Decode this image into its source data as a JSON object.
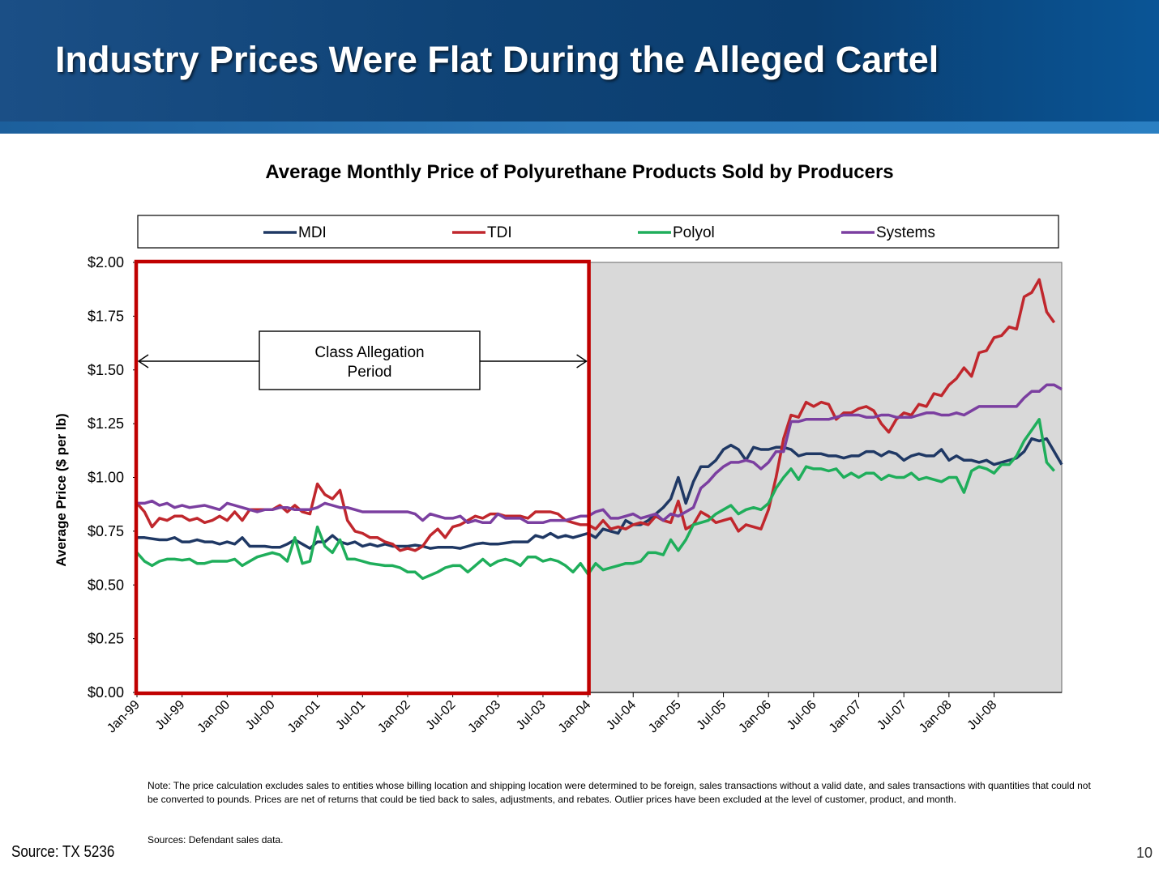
{
  "slide": {
    "title": "Industry Prices Were Flat During the Alleged Cartel",
    "note": "Note: The price calculation excludes sales to entities whose billing location and shipping location were determined to be foreign, sales transactions without a valid date, and sales transactions with quantities that could not be converted to pounds. Prices are net of returns that could be tied back to sales, adjustments, and rebates.  Outlier prices have been excluded at the level of customer, product, and month.",
    "sources": "Sources: Defendant sales data.",
    "footer_source": "Source: TX 5236",
    "page_number": "10"
  },
  "colors": {
    "header_bg": "#0f4376",
    "MDI": "#1f3864",
    "TDI": "#c0272d",
    "Polyol": "#1fae5b",
    "Systems": "#7b3fa0",
    "post_period_shading": "#d9d9d9",
    "class_period_box": "#c00000"
  },
  "chart_data": {
    "type": "line",
    "title": "Average Monthly Price of Polyurethane Products Sold by Producers",
    "xlabel": "",
    "ylabel": "Average Price ($ per lb)",
    "ylim": [
      0,
      2.0
    ],
    "y_ticks": [
      "$0.00",
      "$0.25",
      "$0.50",
      "$0.75",
      "$1.00",
      "$1.25",
      "$1.50",
      "$1.75",
      "$2.00"
    ],
    "x_tick_labels": [
      "Jan-99",
      "Jul-99",
      "Jan-00",
      "Jul-00",
      "Jan-01",
      "Jul-01",
      "Jan-02",
      "Jul-02",
      "Jan-03",
      "Jul-03",
      "Jan-04",
      "Jul-04",
      "Jan-05",
      "Jul-05",
      "Jan-06",
      "Jul-06",
      "Jan-07",
      "Jul-07",
      "Jan-08",
      "Jul-08"
    ],
    "x_start": "Jan-99",
    "x_end": "Dec-08",
    "legend_position": "top",
    "grid": false,
    "annotation": {
      "text_line1": "Class Allegation",
      "text_line2": "Period",
      "from": "Jan-99",
      "to": "Jan-04"
    },
    "shaded_region": {
      "from": "Jan-04",
      "to": "Dec-08"
    },
    "series": [
      {
        "name": "MDI",
        "values": [
          0.72,
          0.72,
          0.715,
          0.71,
          0.71,
          0.72,
          0.7,
          0.7,
          0.71,
          0.7,
          0.7,
          0.69,
          0.7,
          0.69,
          0.72,
          0.68,
          0.68,
          0.68,
          0.675,
          0.675,
          0.69,
          0.71,
          0.69,
          0.67,
          0.7,
          0.7,
          0.73,
          0.7,
          0.69,
          0.7,
          0.68,
          0.69,
          0.68,
          0.69,
          0.68,
          0.68,
          0.68,
          0.685,
          0.68,
          0.67,
          0.675,
          0.675,
          0.675,
          0.67,
          0.68,
          0.69,
          0.695,
          0.69,
          0.69,
          0.695,
          0.7,
          0.7,
          0.7,
          0.73,
          0.72,
          0.74,
          0.72,
          0.73,
          0.72,
          0.73,
          0.74,
          0.72,
          0.76,
          0.75,
          0.74,
          0.8,
          0.78,
          0.78,
          0.8,
          0.83,
          0.86,
          0.9,
          1.0,
          0.88,
          0.98,
          1.05,
          1.05,
          1.08,
          1.13,
          1.15,
          1.13,
          1.08,
          1.14,
          1.13,
          1.13,
          1.14,
          1.14,
          1.13,
          1.1,
          1.11,
          1.11,
          1.11,
          1.1,
          1.1,
          1.09,
          1.1,
          1.1,
          1.12,
          1.12,
          1.1,
          1.12,
          1.11,
          1.08,
          1.1,
          1.11,
          1.1,
          1.1,
          1.13,
          1.08,
          1.1,
          1.08,
          1.08,
          1.07,
          1.08,
          1.06,
          1.07,
          1.08,
          1.09,
          1.12,
          1.18,
          1.17,
          1.18,
          1.12,
          1.06
        ]
      },
      {
        "name": "TDI",
        "values": [
          0.88,
          0.84,
          0.77,
          0.81,
          0.8,
          0.82,
          0.82,
          0.8,
          0.81,
          0.79,
          0.8,
          0.82,
          0.8,
          0.84,
          0.8,
          0.85,
          0.85,
          0.85,
          0.85,
          0.87,
          0.84,
          0.87,
          0.84,
          0.83,
          0.97,
          0.92,
          0.9,
          0.94,
          0.8,
          0.75,
          0.74,
          0.72,
          0.72,
          0.7,
          0.69,
          0.66,
          0.67,
          0.66,
          0.68,
          0.73,
          0.76,
          0.72,
          0.77,
          0.78,
          0.8,
          0.82,
          0.81,
          0.83,
          0.83,
          0.82,
          0.82,
          0.82,
          0.81,
          0.84,
          0.84,
          0.84,
          0.83,
          0.8,
          0.79,
          0.78,
          0.78,
          0.76,
          0.8,
          0.76,
          0.77,
          0.76,
          0.78,
          0.79,
          0.78,
          0.82,
          0.8,
          0.79,
          0.89,
          0.76,
          0.78,
          0.84,
          0.82,
          0.79,
          0.8,
          0.81,
          0.75,
          0.78,
          0.77,
          0.76,
          0.85,
          1.0,
          1.18,
          1.29,
          1.28,
          1.35,
          1.33,
          1.35,
          1.34,
          1.27,
          1.3,
          1.3,
          1.32,
          1.33,
          1.31,
          1.25,
          1.21,
          1.27,
          1.3,
          1.29,
          1.34,
          1.33,
          1.39,
          1.38,
          1.43,
          1.46,
          1.51,
          1.47,
          1.58,
          1.59,
          1.65,
          1.66,
          1.7,
          1.69,
          1.84,
          1.86,
          1.92,
          1.77,
          1.72
        ]
      },
      {
        "name": "Polyol",
        "values": [
          0.65,
          0.61,
          0.59,
          0.61,
          0.62,
          0.62,
          0.615,
          0.62,
          0.6,
          0.6,
          0.61,
          0.61,
          0.61,
          0.62,
          0.59,
          0.61,
          0.63,
          0.64,
          0.65,
          0.64,
          0.61,
          0.72,
          0.6,
          0.61,
          0.77,
          0.68,
          0.65,
          0.71,
          0.62,
          0.62,
          0.61,
          0.6,
          0.595,
          0.59,
          0.59,
          0.58,
          0.56,
          0.56,
          0.53,
          0.545,
          0.56,
          0.58,
          0.59,
          0.59,
          0.56,
          0.59,
          0.62,
          0.59,
          0.61,
          0.62,
          0.61,
          0.59,
          0.63,
          0.63,
          0.61,
          0.62,
          0.61,
          0.59,
          0.56,
          0.6,
          0.55,
          0.6,
          0.57,
          0.58,
          0.59,
          0.6,
          0.6,
          0.61,
          0.65,
          0.65,
          0.64,
          0.71,
          0.66,
          0.71,
          0.78,
          0.79,
          0.8,
          0.83,
          0.85,
          0.87,
          0.83,
          0.85,
          0.86,
          0.85,
          0.88,
          0.95,
          1.0,
          1.04,
          0.99,
          1.05,
          1.04,
          1.04,
          1.03,
          1.04,
          1.0,
          1.02,
          1.0,
          1.02,
          1.02,
          0.99,
          1.01,
          1.0,
          1.0,
          1.02,
          0.99,
          1.0,
          0.99,
          0.98,
          1.0,
          1.0,
          0.93,
          1.03,
          1.05,
          1.04,
          1.02,
          1.06,
          1.06,
          1.1,
          1.17,
          1.22,
          1.27,
          1.07,
          1.03
        ]
      },
      {
        "name": "Systems",
        "values": [
          0.88,
          0.88,
          0.89,
          0.87,
          0.88,
          0.86,
          0.87,
          0.86,
          0.865,
          0.87,
          0.86,
          0.85,
          0.88,
          0.87,
          0.86,
          0.85,
          0.84,
          0.85,
          0.85,
          0.86,
          0.86,
          0.85,
          0.85,
          0.85,
          0.86,
          0.88,
          0.87,
          0.86,
          0.86,
          0.85,
          0.84,
          0.84,
          0.84,
          0.84,
          0.84,
          0.84,
          0.84,
          0.83,
          0.8,
          0.83,
          0.82,
          0.81,
          0.81,
          0.82,
          0.79,
          0.8,
          0.79,
          0.79,
          0.83,
          0.81,
          0.81,
          0.81,
          0.79,
          0.79,
          0.79,
          0.8,
          0.8,
          0.8,
          0.81,
          0.82,
          0.82,
          0.84,
          0.85,
          0.81,
          0.81,
          0.82,
          0.83,
          0.81,
          0.82,
          0.83,
          0.8,
          0.83,
          0.82,
          0.84,
          0.86,
          0.95,
          0.98,
          1.02,
          1.05,
          1.07,
          1.07,
          1.08,
          1.07,
          1.04,
          1.07,
          1.12,
          1.12,
          1.26,
          1.26,
          1.27,
          1.27,
          1.27,
          1.27,
          1.28,
          1.29,
          1.29,
          1.29,
          1.28,
          1.28,
          1.29,
          1.29,
          1.28,
          1.28,
          1.28,
          1.29,
          1.3,
          1.3,
          1.29,
          1.29,
          1.3,
          1.29,
          1.31,
          1.33,
          1.33,
          1.33,
          1.33,
          1.33,
          1.33,
          1.37,
          1.4,
          1.4,
          1.43,
          1.43,
          1.41
        ]
      }
    ]
  }
}
